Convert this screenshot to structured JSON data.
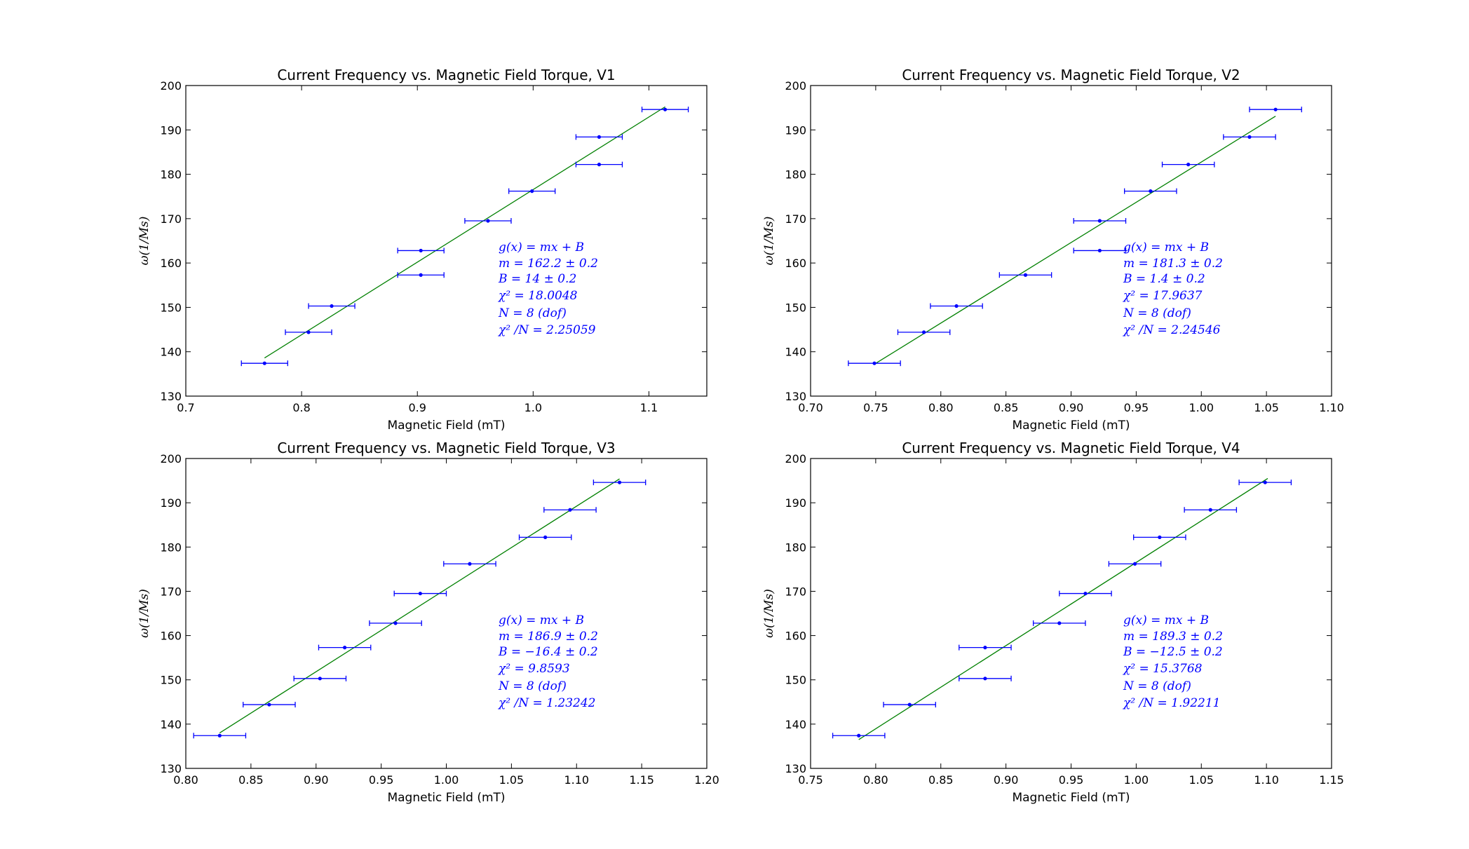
{
  "chart_data": [
    {
      "type": "scatter",
      "title": "Current Frequency vs. Magnetic Field Torque, V1",
      "xlabel": "Magnetic Field (mT)",
      "ylabel": "ω(1/Ms)",
      "xlim": [
        0.7,
        1.15
      ],
      "ylim": [
        130,
        200
      ],
      "xticks": [
        "0.7",
        "0.8",
        "0.9",
        "1.0",
        "1.1"
      ],
      "yticks": [
        "130",
        "140",
        "150",
        "160",
        "170",
        "180",
        "190",
        "200"
      ],
      "xtick_values": [
        0.7,
        0.8,
        0.9,
        1.0,
        1.1
      ],
      "ytick_values": [
        130,
        140,
        150,
        160,
        170,
        180,
        190,
        200
      ],
      "points": [
        {
          "x": 0.768,
          "y": 137.4,
          "xerr": 0.02
        },
        {
          "x": 0.806,
          "y": 144.4,
          "xerr": 0.02
        },
        {
          "x": 0.826,
          "y": 150.3,
          "xerr": 0.02
        },
        {
          "x": 0.903,
          "y": 157.3,
          "xerr": 0.02
        },
        {
          "x": 0.903,
          "y": 162.8,
          "xerr": 0.02
        },
        {
          "x": 0.961,
          "y": 169.5,
          "xerr": 0.02
        },
        {
          "x": 0.999,
          "y": 176.2,
          "xerr": 0.02
        },
        {
          "x": 1.057,
          "y": 182.2,
          "xerr": 0.02
        },
        {
          "x": 1.057,
          "y": 188.4,
          "xerr": 0.02
        },
        {
          "x": 1.114,
          "y": 194.6,
          "xerr": 0.02
        }
      ],
      "fit": {
        "x": [
          0.768,
          1.114
        ],
        "y": [
          138.6,
          195.2
        ]
      },
      "annotation": [
        "g(x) = mx + B",
        "m = 162.2 ± 0.2",
        "B = 14 ± 0.2",
        "χ² = 18.0048",
        "N = 8 (dof)",
        "χ² /N = 2.25059"
      ],
      "colors": {
        "points": "#0000ff",
        "fit": "#008000"
      }
    },
    {
      "type": "scatter",
      "title": "Current Frequency vs. Magnetic Field Torque, V2",
      "xlabel": "Magnetic Field (mT)",
      "ylabel": "ω(1/Ms)",
      "xlim": [
        0.7,
        1.1
      ],
      "ylim": [
        130,
        200
      ],
      "xticks": [
        "0.70",
        "0.75",
        "0.80",
        "0.85",
        "0.90",
        "0.95",
        "1.00",
        "1.05",
        "1.10"
      ],
      "yticks": [
        "130",
        "140",
        "150",
        "160",
        "170",
        "180",
        "190",
        "200"
      ],
      "xtick_values": [
        0.7,
        0.75,
        0.8,
        0.85,
        0.9,
        0.95,
        1.0,
        1.05,
        1.1
      ],
      "ytick_values": [
        130,
        140,
        150,
        160,
        170,
        180,
        190,
        200
      ],
      "points": [
        {
          "x": 0.749,
          "y": 137.4,
          "xerr": 0.02
        },
        {
          "x": 0.787,
          "y": 144.4,
          "xerr": 0.02
        },
        {
          "x": 0.812,
          "y": 150.3,
          "xerr": 0.02
        },
        {
          "x": 0.865,
          "y": 157.3,
          "xerr": 0.02
        },
        {
          "x": 0.922,
          "y": 162.8,
          "xerr": 0.02
        },
        {
          "x": 0.922,
          "y": 169.5,
          "xerr": 0.02
        },
        {
          "x": 0.961,
          "y": 176.2,
          "xerr": 0.02
        },
        {
          "x": 0.99,
          "y": 182.2,
          "xerr": 0.02
        },
        {
          "x": 1.037,
          "y": 188.4,
          "xerr": 0.02
        },
        {
          "x": 1.057,
          "y": 194.6,
          "xerr": 0.02
        }
      ],
      "fit": {
        "x": [
          0.749,
          1.057
        ],
        "y": [
          137.2,
          193.1
        ]
      },
      "annotation": [
        "g(x) = mx + B",
        "m = 181.3 ± 0.2",
        "B = 1.4 ± 0.2",
        "χ² = 17.9637",
        "N = 8 (dof)",
        "χ² /N = 2.24546"
      ],
      "colors": {
        "points": "#0000ff",
        "fit": "#008000"
      }
    },
    {
      "type": "scatter",
      "title": "Current Frequency vs. Magnetic Field Torque, V3",
      "xlabel": "Magnetic Field (mT)",
      "ylabel": "ω(1/Ms)",
      "xlim": [
        0.8,
        1.2
      ],
      "ylim": [
        130,
        200
      ],
      "xticks": [
        "0.80",
        "0.85",
        "0.90",
        "0.95",
        "1.00",
        "1.05",
        "1.10",
        "1.15",
        "1.20"
      ],
      "yticks": [
        "130",
        "140",
        "150",
        "160",
        "170",
        "180",
        "190",
        "200"
      ],
      "xtick_values": [
        0.8,
        0.85,
        0.9,
        0.95,
        1.0,
        1.05,
        1.1,
        1.15,
        1.2
      ],
      "ytick_values": [
        130,
        140,
        150,
        160,
        170,
        180,
        190,
        200
      ],
      "points": [
        {
          "x": 0.826,
          "y": 137.4,
          "xerr": 0.02
        },
        {
          "x": 0.864,
          "y": 144.4,
          "xerr": 0.02
        },
        {
          "x": 0.903,
          "y": 150.3,
          "xerr": 0.02
        },
        {
          "x": 0.922,
          "y": 157.3,
          "xerr": 0.02
        },
        {
          "x": 0.961,
          "y": 162.8,
          "xerr": 0.02
        },
        {
          "x": 0.98,
          "y": 169.5,
          "xerr": 0.02
        },
        {
          "x": 1.018,
          "y": 176.2,
          "xerr": 0.02
        },
        {
          "x": 1.076,
          "y": 182.2,
          "xerr": 0.02
        },
        {
          "x": 1.095,
          "y": 188.4,
          "xerr": 0.02
        },
        {
          "x": 1.133,
          "y": 194.6,
          "xerr": 0.02
        }
      ],
      "fit": {
        "x": [
          0.826,
          1.133
        ],
        "y": [
          138.0,
          195.4
        ]
      },
      "annotation": [
        "g(x) = mx + B",
        "m = 186.9 ± 0.2",
        "B = −16.4 ± 0.2",
        "χ² = 9.8593",
        "N = 8 (dof)",
        "χ² /N = 1.23242"
      ],
      "colors": {
        "points": "#0000ff",
        "fit": "#008000"
      }
    },
    {
      "type": "scatter",
      "title": "Current Frequency vs. Magnetic Field Torque, V4",
      "xlabel": "Magnetic Field (mT)",
      "ylabel": "ω(1/Ms)",
      "xlim": [
        0.75,
        1.15
      ],
      "ylim": [
        130,
        200
      ],
      "xticks": [
        "0.75",
        "0.80",
        "0.85",
        "0.90",
        "0.95",
        "1.00",
        "1.05",
        "1.10",
        "1.15"
      ],
      "yticks": [
        "130",
        "140",
        "150",
        "160",
        "170",
        "180",
        "190",
        "200"
      ],
      "xtick_values": [
        0.75,
        0.8,
        0.85,
        0.9,
        0.95,
        1.0,
        1.05,
        1.1,
        1.15
      ],
      "ytick_values": [
        130,
        140,
        150,
        160,
        170,
        180,
        190,
        200
      ],
      "points": [
        {
          "x": 0.787,
          "y": 137.4,
          "xerr": 0.02
        },
        {
          "x": 0.826,
          "y": 144.4,
          "xerr": 0.02
        },
        {
          "x": 0.884,
          "y": 150.3,
          "xerr": 0.02
        },
        {
          "x": 0.884,
          "y": 157.3,
          "xerr": 0.02
        },
        {
          "x": 0.941,
          "y": 162.8,
          "xerr": 0.02
        },
        {
          "x": 0.961,
          "y": 169.5,
          "xerr": 0.02
        },
        {
          "x": 0.999,
          "y": 176.2,
          "xerr": 0.02
        },
        {
          "x": 1.018,
          "y": 182.2,
          "xerr": 0.02
        },
        {
          "x": 1.057,
          "y": 188.4,
          "xerr": 0.02
        },
        {
          "x": 1.099,
          "y": 194.6,
          "xerr": 0.02
        }
      ],
      "fit": {
        "x": [
          0.787,
          1.101
        ],
        "y": [
          136.5,
          195.5
        ]
      },
      "annotation": [
        "g(x) = mx + B",
        "m = 189.3 ± 0.2",
        "B = −12.5 ± 0.2",
        "χ² = 15.3768",
        "N = 8 (dof)",
        "χ² /N = 1.92211"
      ],
      "colors": {
        "points": "#0000ff",
        "fit": "#008000"
      }
    }
  ]
}
